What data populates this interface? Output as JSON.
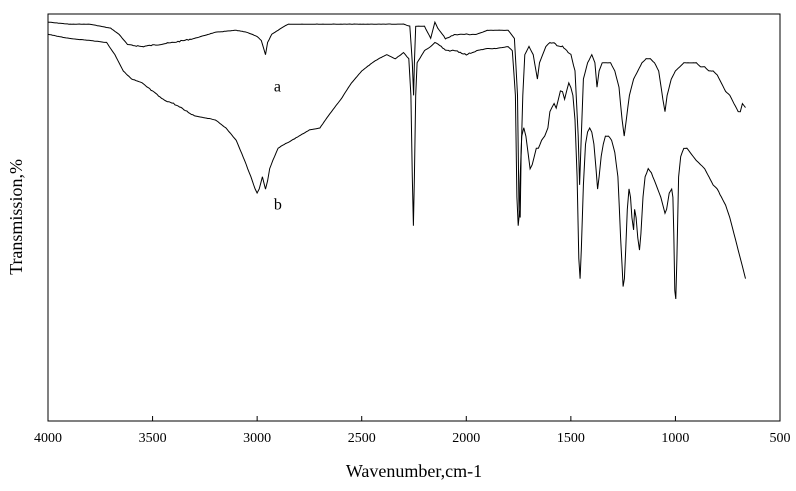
{
  "chart_data": {
    "type": "line",
    "title": "",
    "xlabel": "Wavenumber,cm-1",
    "ylabel": "Transmission,%",
    "xlim": [
      4000,
      500
    ],
    "x_reversed": true,
    "ylim": [
      0,
      100
    ],
    "y_ticks_visible": false,
    "grid": false,
    "legend": "none",
    "x_ticks": [
      4000,
      3500,
      3000,
      2500,
      2000,
      1500,
      1000,
      500
    ],
    "x_tick_labels": [
      "4000",
      "3500",
      "3000",
      "2500",
      "2000",
      "1500",
      "1000",
      "500"
    ],
    "series": [
      {
        "name": "a",
        "color": "#000000",
        "label_at": [
          2920,
          81
        ],
        "points": [
          [
            4000,
            98
          ],
          [
            3900,
            97.5
          ],
          [
            3800,
            97.5
          ],
          [
            3700,
            96.5
          ],
          [
            3660,
            95
          ],
          [
            3620,
            92.5
          ],
          [
            3550,
            92
          ],
          [
            3400,
            93
          ],
          [
            3300,
            94
          ],
          [
            3200,
            95.5
          ],
          [
            3100,
            96
          ],
          [
            3050,
            95.5
          ],
          [
            3000,
            94.5
          ],
          [
            2980,
            93.5
          ],
          [
            2960,
            90
          ],
          [
            2950,
            93
          ],
          [
            2930,
            95
          ],
          [
            2900,
            96
          ],
          [
            2870,
            97
          ],
          [
            2850,
            97.5
          ],
          [
            2800,
            97.5
          ],
          [
            2700,
            97.5
          ],
          [
            2600,
            97.5
          ],
          [
            2500,
            97.5
          ],
          [
            2400,
            97.5
          ],
          [
            2300,
            97.5
          ],
          [
            2270,
            97
          ],
          [
            2258,
            88
          ],
          [
            2252,
            80
          ],
          [
            2248,
            88
          ],
          [
            2242,
            97
          ],
          [
            2200,
            97
          ],
          [
            2170,
            94
          ],
          [
            2150,
            98
          ],
          [
            2130,
            96
          ],
          [
            2100,
            94
          ],
          [
            2050,
            95
          ],
          [
            2000,
            95
          ],
          [
            1950,
            95
          ],
          [
            1900,
            96
          ],
          [
            1850,
            96
          ],
          [
            1800,
            96
          ],
          [
            1770,
            94
          ],
          [
            1755,
            80
          ],
          [
            1748,
            52
          ],
          [
            1742,
            50
          ],
          [
            1738,
            65
          ],
          [
            1730,
            80
          ],
          [
            1720,
            90
          ],
          [
            1700,
            92
          ],
          [
            1680,
            90
          ],
          [
            1660,
            84
          ],
          [
            1650,
            88
          ],
          [
            1620,
            92
          ],
          [
            1600,
            93
          ],
          [
            1580,
            93
          ],
          [
            1560,
            92
          ],
          [
            1540,
            92
          ],
          [
            1520,
            91
          ],
          [
            1500,
            90
          ],
          [
            1480,
            86
          ],
          [
            1465,
            70
          ],
          [
            1458,
            58
          ],
          [
            1450,
            70
          ],
          [
            1440,
            84
          ],
          [
            1420,
            88
          ],
          [
            1400,
            90
          ],
          [
            1385,
            88
          ],
          [
            1375,
            82
          ],
          [
            1365,
            86
          ],
          [
            1350,
            88
          ],
          [
            1330,
            88
          ],
          [
            1310,
            88
          ],
          [
            1290,
            86
          ],
          [
            1270,
            82
          ],
          [
            1255,
            74
          ],
          [
            1245,
            70
          ],
          [
            1235,
            74
          ],
          [
            1220,
            80
          ],
          [
            1200,
            84
          ],
          [
            1180,
            86
          ],
          [
            1160,
            88
          ],
          [
            1140,
            89
          ],
          [
            1120,
            89
          ],
          [
            1100,
            88
          ],
          [
            1080,
            86
          ],
          [
            1060,
            79
          ],
          [
            1050,
            76
          ],
          [
            1040,
            80
          ],
          [
            1020,
            84
          ],
          [
            1000,
            86
          ],
          [
            980,
            87
          ],
          [
            960,
            88
          ],
          [
            940,
            88
          ],
          [
            920,
            88
          ],
          [
            900,
            88
          ],
          [
            880,
            87
          ],
          [
            860,
            87
          ],
          [
            840,
            86
          ],
          [
            820,
            86
          ],
          [
            800,
            85
          ],
          [
            780,
            83
          ],
          [
            760,
            81
          ],
          [
            740,
            80
          ],
          [
            720,
            78
          ],
          [
            700,
            76
          ],
          [
            690,
            76
          ],
          [
            680,
            78
          ],
          [
            665,
            77
          ]
        ]
      },
      {
        "name": "b",
        "color": "#000000",
        "label_at": [
          2920,
          52
        ],
        "points": [
          [
            4000,
            95
          ],
          [
            3900,
            94
          ],
          [
            3800,
            93.5
          ],
          [
            3720,
            93
          ],
          [
            3680,
            90
          ],
          [
            3640,
            86
          ],
          [
            3600,
            84
          ],
          [
            3550,
            83
          ],
          [
            3500,
            81
          ],
          [
            3450,
            79
          ],
          [
            3400,
            78
          ],
          [
            3350,
            76.5
          ],
          [
            3300,
            75
          ],
          [
            3250,
            74.5
          ],
          [
            3200,
            74
          ],
          [
            3150,
            72
          ],
          [
            3100,
            69
          ],
          [
            3060,
            64
          ],
          [
            3030,
            60
          ],
          [
            3010,
            57
          ],
          [
            3000,
            56
          ],
          [
            2990,
            57
          ],
          [
            2975,
            60
          ],
          [
            2960,
            57
          ],
          [
            2950,
            59
          ],
          [
            2940,
            62
          ],
          [
            2925,
            64
          ],
          [
            2900,
            67
          ],
          [
            2870,
            68
          ],
          [
            2850,
            68.5
          ],
          [
            2800,
            70
          ],
          [
            2750,
            71.5
          ],
          [
            2700,
            72
          ],
          [
            2660,
            75
          ],
          [
            2600,
            79
          ],
          [
            2550,
            83
          ],
          [
            2500,
            86
          ],
          [
            2450,
            88
          ],
          [
            2420,
            89
          ],
          [
            2380,
            90
          ],
          [
            2340,
            89
          ],
          [
            2300,
            90.5
          ],
          [
            2275,
            89
          ],
          [
            2265,
            80
          ],
          [
            2258,
            60
          ],
          [
            2253,
            48
          ],
          [
            2248,
            60
          ],
          [
            2242,
            80
          ],
          [
            2235,
            88
          ],
          [
            2200,
            91
          ],
          [
            2170,
            92
          ],
          [
            2150,
            93
          ],
          [
            2120,
            92
          ],
          [
            2100,
            91
          ],
          [
            2050,
            91
          ],
          [
            2000,
            90
          ],
          [
            1950,
            91
          ],
          [
            1900,
            91.5
          ],
          [
            1860,
            91.5
          ],
          [
            1800,
            92
          ],
          [
            1780,
            91
          ],
          [
            1765,
            80
          ],
          [
            1758,
            55
          ],
          [
            1752,
            48
          ],
          [
            1748,
            50
          ],
          [
            1742,
            60
          ],
          [
            1735,
            70
          ],
          [
            1725,
            72
          ],
          [
            1715,
            70
          ],
          [
            1705,
            66
          ],
          [
            1695,
            62
          ],
          [
            1685,
            63
          ],
          [
            1675,
            65
          ],
          [
            1665,
            67
          ],
          [
            1655,
            67
          ],
          [
            1640,
            69
          ],
          [
            1625,
            70
          ],
          [
            1610,
            72
          ],
          [
            1600,
            76
          ],
          [
            1590,
            77
          ],
          [
            1580,
            78
          ],
          [
            1570,
            77
          ],
          [
            1560,
            79
          ],
          [
            1550,
            81
          ],
          [
            1540,
            81
          ],
          [
            1530,
            79
          ],
          [
            1520,
            81
          ],
          [
            1510,
            83
          ],
          [
            1500,
            82
          ],
          [
            1490,
            80
          ],
          [
            1480,
            74
          ],
          [
            1470,
            60
          ],
          [
            1462,
            40
          ],
          [
            1456,
            35
          ],
          [
            1450,
            42
          ],
          [
            1440,
            58
          ],
          [
            1430,
            68
          ],
          [
            1420,
            71
          ],
          [
            1410,
            72
          ],
          [
            1400,
            71
          ],
          [
            1390,
            68
          ],
          [
            1380,
            62
          ],
          [
            1372,
            57
          ],
          [
            1365,
            60
          ],
          [
            1355,
            65
          ],
          [
            1345,
            68
          ],
          [
            1335,
            70
          ],
          [
            1320,
            70
          ],
          [
            1305,
            69
          ],
          [
            1290,
            66
          ],
          [
            1275,
            60
          ],
          [
            1262,
            45
          ],
          [
            1255,
            38
          ],
          [
            1250,
            33
          ],
          [
            1244,
            35
          ],
          [
            1238,
            42
          ],
          [
            1230,
            52
          ],
          [
            1222,
            57
          ],
          [
            1215,
            55
          ],
          [
            1208,
            50
          ],
          [
            1200,
            47
          ],
          [
            1195,
            52
          ],
          [
            1188,
            50
          ],
          [
            1180,
            45
          ],
          [
            1172,
            42
          ],
          [
            1165,
            46
          ],
          [
            1155,
            55
          ],
          [
            1145,
            60
          ],
          [
            1130,
            62
          ],
          [
            1115,
            61
          ],
          [
            1100,
            59
          ],
          [
            1085,
            57
          ],
          [
            1070,
            55
          ],
          [
            1060,
            53
          ],
          [
            1050,
            51
          ],
          [
            1042,
            52
          ],
          [
            1030,
            56
          ],
          [
            1018,
            57
          ],
          [
            1012,
            55
          ],
          [
            1008,
            46
          ],
          [
            1003,
            32
          ],
          [
            998,
            30
          ],
          [
            993,
            40
          ],
          [
            985,
            60
          ],
          [
            975,
            65
          ],
          [
            960,
            67
          ],
          [
            945,
            67
          ],
          [
            930,
            66
          ],
          [
            915,
            65
          ],
          [
            900,
            64
          ],
          [
            880,
            63
          ],
          [
            860,
            62
          ],
          [
            840,
            60
          ],
          [
            820,
            58
          ],
          [
            800,
            57
          ],
          [
            780,
            55
          ],
          [
            760,
            53
          ],
          [
            740,
            50
          ],
          [
            720,
            46
          ],
          [
            700,
            42
          ],
          [
            690,
            40
          ],
          [
            680,
            38
          ],
          [
            670,
            36
          ],
          [
            665,
            35
          ]
        ]
      }
    ]
  }
}
